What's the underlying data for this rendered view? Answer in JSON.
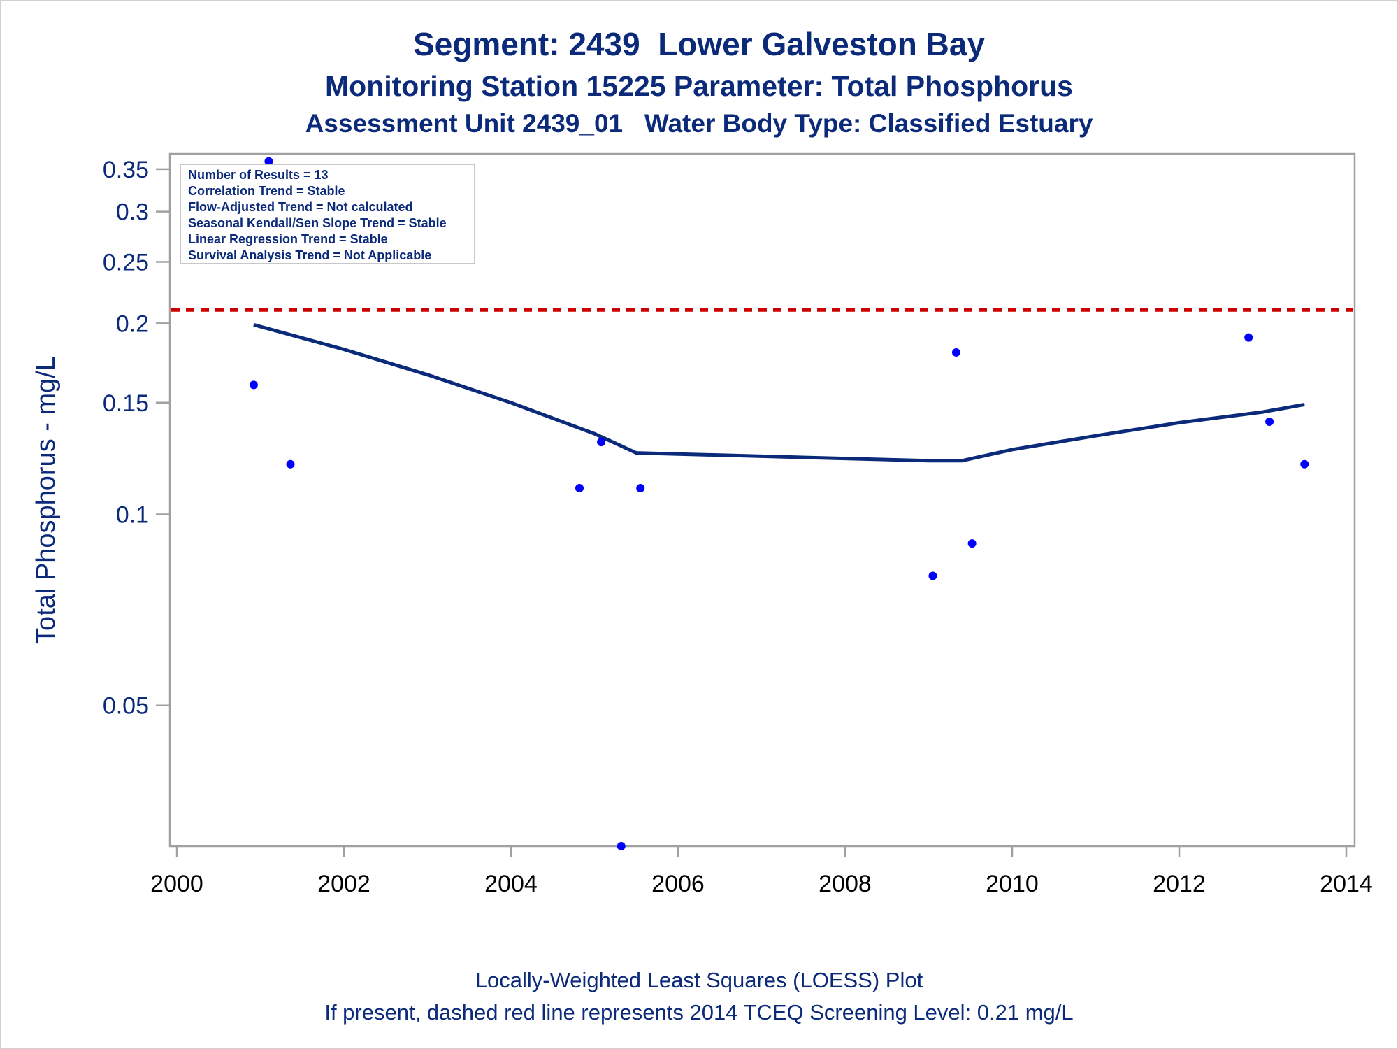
{
  "titles": {
    "line1": "Segment: 2439  Lower Galveston Bay",
    "line2": "Monitoring Station 15225 Parameter: Total Phosphorus",
    "line3": "Assessment Unit 2439_01   Water Body Type: Classified Estuary"
  },
  "footnotes": {
    "line1": "Locally-Weighted Least Squares (LOESS) Plot",
    "line2": "If present, dashed red line represents 2014 TCEQ Screening Level: 0.21 mg/L"
  },
  "stats_box": [
    "Number of Results = 13",
    "Correlation Trend = Stable",
    "Flow-Adjusted Trend = Not calculated",
    "Seasonal Kendall/Sen Slope Trend = Stable",
    "Linear Regression Trend = Stable",
    "Survival Analysis Trend = Not Applicable"
  ],
  "colors": {
    "text": "#0b2a7a",
    "points": "#0000ff",
    "loess_line": "#0b2a7a",
    "screening_line": "#cc0000",
    "axis": "#a0a0a0"
  },
  "chart_data": {
    "type": "scatter",
    "ylabel": "Total Phosphorus - mg/L",
    "xlabel": "",
    "y_scale": "log",
    "xlim": [
      2000,
      2014
    ],
    "ylim": [
      0.03,
      0.37
    ],
    "x_ticks": [
      2000,
      2002,
      2004,
      2006,
      2008,
      2010,
      2012,
      2014
    ],
    "x_tick_labels": [
      "2000",
      "2002",
      "2004",
      "2006",
      "2008",
      "2010",
      "2012",
      "2014"
    ],
    "y_ticks": [
      0.05,
      0.1,
      0.15,
      0.2,
      0.25,
      0.3,
      0.35
    ],
    "y_tick_labels": [
      "0.05",
      "0.1",
      "0.15",
      "0.2",
      "0.25",
      "0.3",
      "0.35"
    ],
    "screening_level": 0.21,
    "points": [
      {
        "x": 2000.92,
        "y": 0.16
      },
      {
        "x": 2001.1,
        "y": 0.36
      },
      {
        "x": 2001.36,
        "y": 0.12
      },
      {
        "x": 2004.82,
        "y": 0.11
      },
      {
        "x": 2005.08,
        "y": 0.13
      },
      {
        "x": 2005.32,
        "y": 0.03
      },
      {
        "x": 2005.55,
        "y": 0.11
      },
      {
        "x": 2009.05,
        "y": 0.08
      },
      {
        "x": 2009.33,
        "y": 0.18
      },
      {
        "x": 2009.52,
        "y": 0.09
      },
      {
        "x": 2012.83,
        "y": 0.19
      },
      {
        "x": 2013.08,
        "y": 0.14
      },
      {
        "x": 2013.5,
        "y": 0.12
      }
    ],
    "loess": [
      {
        "x": 2000.92,
        "y": 0.199
      },
      {
        "x": 2002.0,
        "y": 0.182
      },
      {
        "x": 2003.0,
        "y": 0.166
      },
      {
        "x": 2004.0,
        "y": 0.15
      },
      {
        "x": 2005.0,
        "y": 0.134
      },
      {
        "x": 2005.5,
        "y": 0.125
      },
      {
        "x": 2006.0,
        "y": 0.1245
      },
      {
        "x": 2007.0,
        "y": 0.1235
      },
      {
        "x": 2008.0,
        "y": 0.1225
      },
      {
        "x": 2009.0,
        "y": 0.1215
      },
      {
        "x": 2009.4,
        "y": 0.1215
      },
      {
        "x": 2010.0,
        "y": 0.1265
      },
      {
        "x": 2011.0,
        "y": 0.133
      },
      {
        "x": 2012.0,
        "y": 0.1395
      },
      {
        "x": 2013.0,
        "y": 0.145
      },
      {
        "x": 2013.5,
        "y": 0.149
      }
    ]
  }
}
